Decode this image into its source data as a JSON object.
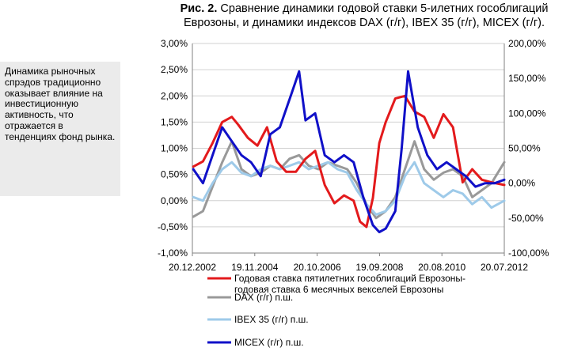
{
  "title": {
    "lead": "Рис. 2.",
    "text": " Сравнение динамики годовой ставки 5-илетних гособлигаций Еврозоны, и динамики индексов DAX (г/г), IBEX 35 (г/г), MICEX (г/г)."
  },
  "sidebar_text": "Динамика рыночных спрэдов традиционно оказывает влияние на инвестиционную активность, что отражается в тенденциях фонд рынка.",
  "colors": {
    "spread": "#e31a1c",
    "dax": "#999999",
    "ibex": "#9ecae9",
    "micex": "#1010c8"
  },
  "chart_data": {
    "type": "line",
    "x_ticks": [
      "20.12.2002",
      "19.11.2004",
      "20.10.2006",
      "19.09.2008",
      "20.08.2010",
      "20.07.2012"
    ],
    "x_range": [
      "2002.97",
      "2012.70"
    ],
    "left_axis": {
      "ylim": [
        -1.0,
        3.0
      ],
      "ticks": [
        "-1,00%",
        "-0,50%",
        "0,00%",
        "0,50%",
        "1,00%",
        "1,50%",
        "2,00%",
        "2,50%",
        "3,00%"
      ]
    },
    "right_axis": {
      "ylim": [
        -100,
        200
      ],
      "ticks": [
        "-100,00%",
        "-50,00%",
        "0,00%",
        "50,00%",
        "100,00%",
        "150,00%",
        "200,00%"
      ]
    },
    "grid": "horizontal",
    "legend_position": "bottom",
    "series": [
      {
        "name": "Годовая ставка пятилетних гособлигаций Еврозоны-годовая ставка 6 месячных векселей Еврозоны",
        "axis": "left",
        "color_key": "spread",
        "x": [
          2003.0,
          2003.3,
          2003.6,
          2003.9,
          2004.2,
          2004.4,
          2004.7,
          2005.0,
          2005.3,
          2005.6,
          2005.9,
          2006.2,
          2006.5,
          2006.8,
          2007.1,
          2007.4,
          2007.7,
          2008.0,
          2008.2,
          2008.4,
          2008.6,
          2008.8,
          2009.0,
          2009.3,
          2009.6,
          2009.9,
          2010.2,
          2010.5,
          2010.8,
          2011.1,
          2011.4,
          2011.7,
          2012.0,
          2012.3,
          2012.7
        ],
        "values": [
          0.65,
          0.75,
          1.1,
          1.5,
          1.6,
          1.45,
          1.2,
          1.05,
          1.4,
          0.75,
          0.55,
          0.55,
          0.8,
          0.95,
          0.3,
          -0.05,
          0.1,
          0.0,
          -0.4,
          -0.5,
          0.05,
          1.1,
          1.5,
          1.95,
          2.0,
          1.7,
          1.6,
          1.2,
          1.65,
          1.4,
          0.35,
          0.6,
          0.4,
          0.35,
          0.3
        ]
      },
      {
        "name": "DAX (г/г) п.ш.",
        "axis": "right",
        "color_key": "dax",
        "x": [
          2003.0,
          2003.3,
          2003.6,
          2003.9,
          2004.2,
          2004.5,
          2004.8,
          2005.1,
          2005.4,
          2005.7,
          2006.0,
          2006.3,
          2006.6,
          2006.9,
          2007.2,
          2007.5,
          2007.8,
          2008.1,
          2008.4,
          2008.7,
          2009.0,
          2009.3,
          2009.6,
          2009.9,
          2010.2,
          2010.5,
          2010.8,
          2011.1,
          2011.4,
          2011.7,
          2012.0,
          2012.3,
          2012.7
        ],
        "values": [
          -48,
          -40,
          -5,
          30,
          60,
          20,
          10,
          15,
          25,
          20,
          35,
          40,
          25,
          20,
          30,
          25,
          20,
          0,
          -30,
          -50,
          -40,
          -20,
          20,
          60,
          20,
          5,
          15,
          20,
          10,
          -20,
          -10,
          0,
          30
        ]
      },
      {
        "name": "IBEX 35 (г/г) п.ш.",
        "axis": "right",
        "color_key": "ibex",
        "x": [
          2003.0,
          2003.3,
          2003.6,
          2003.9,
          2004.2,
          2004.5,
          2004.8,
          2005.1,
          2005.4,
          2005.7,
          2006.0,
          2006.3,
          2006.6,
          2006.9,
          2007.2,
          2007.5,
          2007.8,
          2008.1,
          2008.4,
          2008.7,
          2009.0,
          2009.3,
          2009.6,
          2009.9,
          2010.2,
          2010.5,
          2010.8,
          2011.1,
          2011.4,
          2011.7,
          2012.0,
          2012.3,
          2012.7
        ],
        "values": [
          -20,
          -25,
          0,
          20,
          30,
          15,
          10,
          20,
          25,
          20,
          25,
          30,
          20,
          25,
          30,
          20,
          15,
          -10,
          -30,
          -45,
          -40,
          -25,
          10,
          30,
          0,
          -10,
          -20,
          -10,
          -15,
          -30,
          -20,
          -35,
          -25
        ]
      },
      {
        "name": "MICEX (г/г) п.ш.",
        "axis": "right",
        "color_key": "micex",
        "x": [
          2003.0,
          2003.3,
          2003.6,
          2003.9,
          2004.2,
          2004.5,
          2004.8,
          2005.1,
          2005.4,
          2005.7,
          2006.0,
          2006.3,
          2006.5,
          2006.8,
          2007.1,
          2007.4,
          2007.7,
          2008.0,
          2008.3,
          2008.6,
          2008.8,
          2009.0,
          2009.3,
          2009.5,
          2009.7,
          2010.0,
          2010.3,
          2010.6,
          2010.9,
          2011.2,
          2011.5,
          2011.8,
          2012.1,
          2012.4,
          2012.7
        ],
        "values": [
          20,
          0,
          40,
          80,
          60,
          40,
          30,
          10,
          70,
          80,
          120,
          160,
          90,
          100,
          40,
          30,
          40,
          30,
          -20,
          -60,
          -70,
          -65,
          -40,
          50,
          160,
          80,
          40,
          20,
          30,
          20,
          10,
          -5,
          0,
          0,
          5
        ]
      }
    ]
  }
}
